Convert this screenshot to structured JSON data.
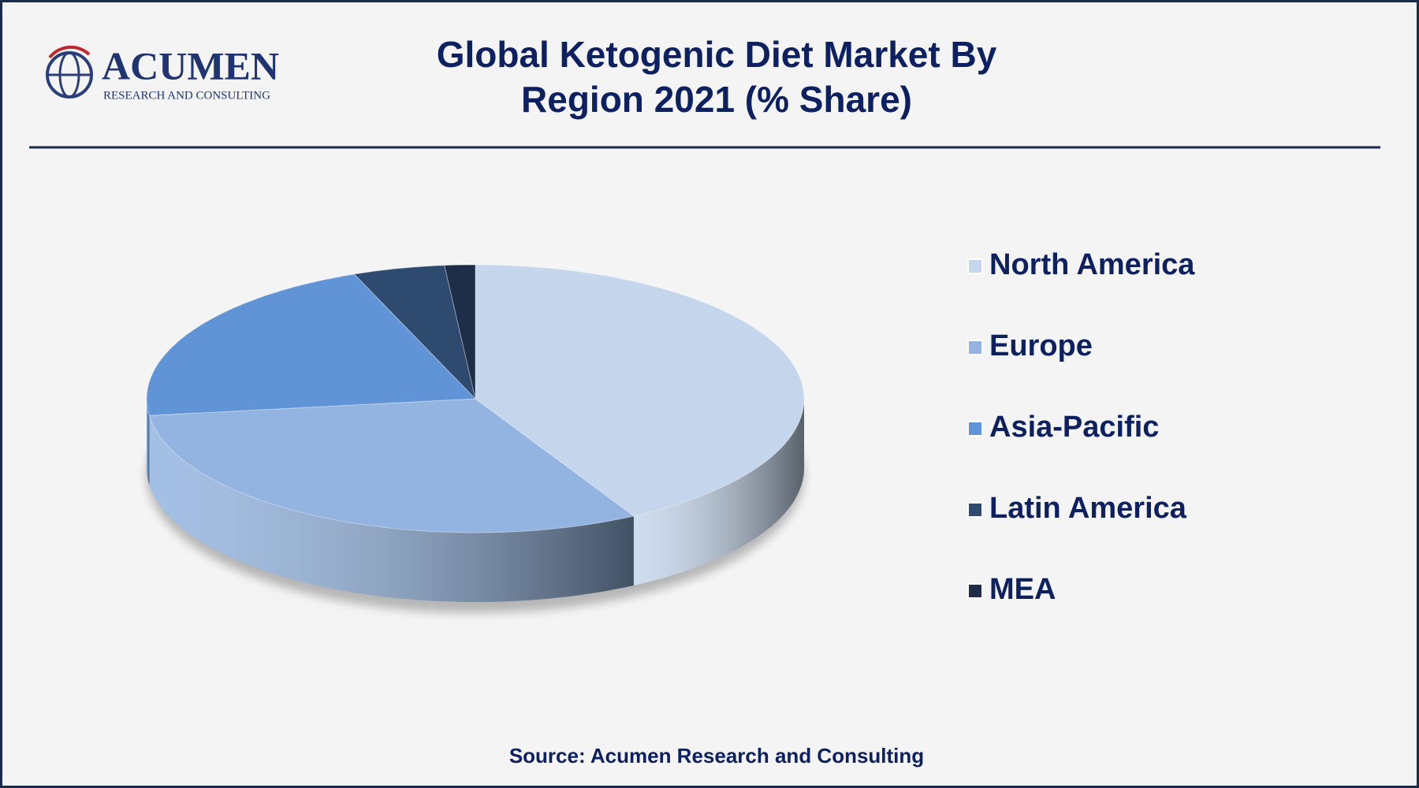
{
  "logo": {
    "name": "ACUMEN",
    "tagline": "RESEARCH AND CONSULTING"
  },
  "chart_data": {
    "type": "pie",
    "title": "Global Ketogenic Diet Market By Region 2021 (% Share)",
    "categories": [
      "North America",
      "Europe",
      "Asia-Pacific",
      "Latin America",
      "MEA"
    ],
    "values": [
      42,
      31,
      21,
      4.5,
      1.5
    ],
    "colors": [
      "#c5d6ec",
      "#93b4e0",
      "#6094d6",
      "#2e4a6e",
      "#1f2e48"
    ],
    "legend": "right",
    "source": "Source: Acumen Research and Consulting"
  }
}
